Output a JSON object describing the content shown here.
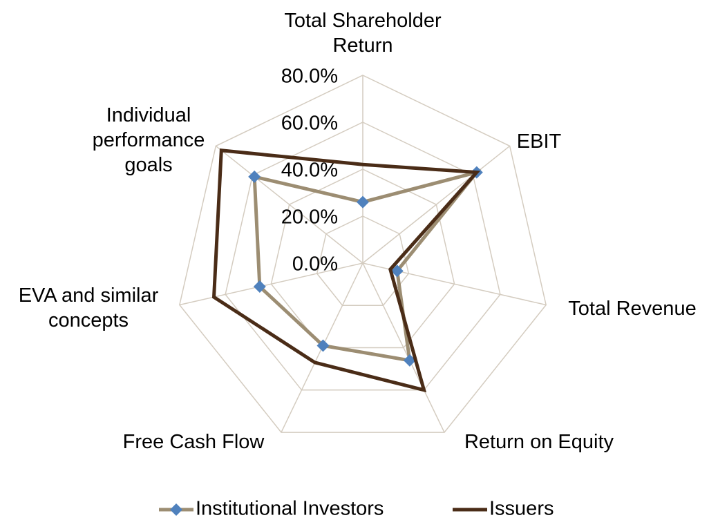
{
  "chart_data": {
    "type": "radar",
    "categories": [
      "Total Shareholder Return",
      "EBIT",
      "Total Revenue",
      "Return on Equity",
      "Free Cash Flow",
      "EVA and similar concepts",
      "Individual performance goals"
    ],
    "series": [
      {
        "name": "Institutional Investors",
        "color": "#9c8d72",
        "marker_color": "#4f81bd",
        "values": [
          26,
          62,
          15,
          46,
          39,
          45,
          59
        ]
      },
      {
        "name": "Issuers",
        "color": "#4a2c17",
        "values": [
          42,
          62,
          12,
          60,
          47,
          65,
          77
        ]
      }
    ],
    "rlim": [
      0,
      80
    ],
    "rticks": [
      {
        "value": 0,
        "label": "0.0%"
      },
      {
        "value": 20,
        "label": "20.0%"
      },
      {
        "value": 40,
        "label": "40.0%"
      },
      {
        "value": 60,
        "label": "60.0%"
      },
      {
        "value": 80,
        "label": "80.0%"
      }
    ],
    "grid": true,
    "legend": "bottom"
  }
}
